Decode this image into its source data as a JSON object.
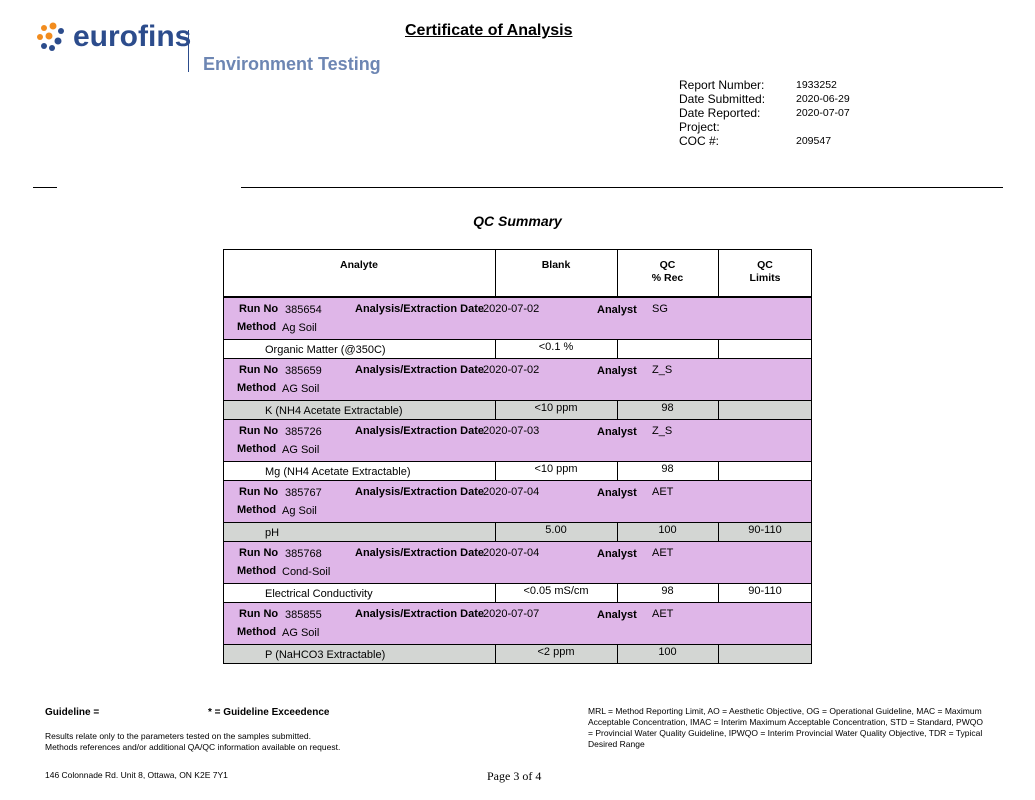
{
  "header": {
    "logo": "eurofins",
    "subtitle": "Environment Testing",
    "title": "Certificate of Analysis"
  },
  "report_info": [
    {
      "label": "Report Number:",
      "value": "1933252"
    },
    {
      "label": "Date Submitted:",
      "value": "2020-06-29"
    },
    {
      "label": "Date Reported:",
      "value": "2020-07-07"
    },
    {
      "label": "Project:"
    },
    {
      "label": "COC #:",
      "value": "209547"
    }
  ],
  "section_title": "QC Summary",
  "table": {
    "columns": [
      [
        "Analyte"
      ],
      [
        "Blank"
      ],
      [
        "QC",
        "% Rec"
      ],
      [
        "QC",
        "Limits"
      ]
    ],
    "labels": {
      "run_no": "Run No",
      "date": "Analysis/Extraction Date",
      "analyst": "Analyst",
      "method": "Method"
    },
    "runs": [
      {
        "run_no": "385654",
        "date": "2020-07-02",
        "analyst": "SG",
        "method": "Ag Soil",
        "rows": [
          {
            "analyte": "Organic Matter (@350C)",
            "blank": "<0.1 %"
          }
        ]
      },
      {
        "run_no": "385659",
        "date": "2020-07-02",
        "analyst": "Z_S",
        "method": "AG Soil",
        "rows": [
          {
            "analyte": "K (NH4 Acetate Extractable)",
            "blank": "<10 ppm",
            "qc_rec": "98"
          }
        ]
      },
      {
        "run_no": "385726",
        "date": "2020-07-03",
        "analyst": "Z_S",
        "method": "AG Soil",
        "rows": [
          {
            "analyte": "Mg (NH4 Acetate Extractable)",
            "blank": "<10 ppm",
            "qc_rec": "98"
          }
        ]
      },
      {
        "run_no": "385767",
        "date": "2020-07-04",
        "analyst": "AET",
        "method": "Ag Soil",
        "rows": [
          {
            "analyte": "pH",
            "blank": "5.00",
            "qc_rec": "100",
            "qc_limits": "90-110"
          }
        ]
      },
      {
        "run_no": "385768",
        "date": "2020-07-04",
        "analyst": "AET",
        "method": "Cond-Soil",
        "rows": [
          {
            "analyte": "Electrical Conductivity",
            "blank": "<0.05 mS/cm",
            "qc_rec": "98",
            "qc_limits": "90-110"
          }
        ]
      },
      {
        "run_no": "385855",
        "date": "2020-07-07",
        "analyst": "AET",
        "method": "AG Soil",
        "rows": [
          {
            "analyte": "P (NaHCO3 Extractable)",
            "blank": "<2 ppm",
            "qc_rec": "100"
          }
        ]
      }
    ]
  },
  "footer": {
    "guideline": "Guideline =",
    "exceedence": "* = Guideline Exceedence",
    "notes": [
      "Results relate only to the parameters tested on the samples submitted.",
      "Methods references and/or additional QA/QC information available on request."
    ],
    "abbreviations": "MRL = Method Reporting Limit, AO = Aesthetic Objective, OG = Operational Guideline, MAC = Maximum Acceptable Concentration, IMAC = Interim Maximum Acceptable Concentration, STD = Standard, PWQO = Provincial Water Quality Guideline, IPWQO = Interim Provincial Water Quality Objective, TDR = Typical Desired Range",
    "address": "146 Colonnade Rd. Unit 8, Ottawa, ON K2E 7Y1",
    "page": "Page 3 of 4"
  }
}
